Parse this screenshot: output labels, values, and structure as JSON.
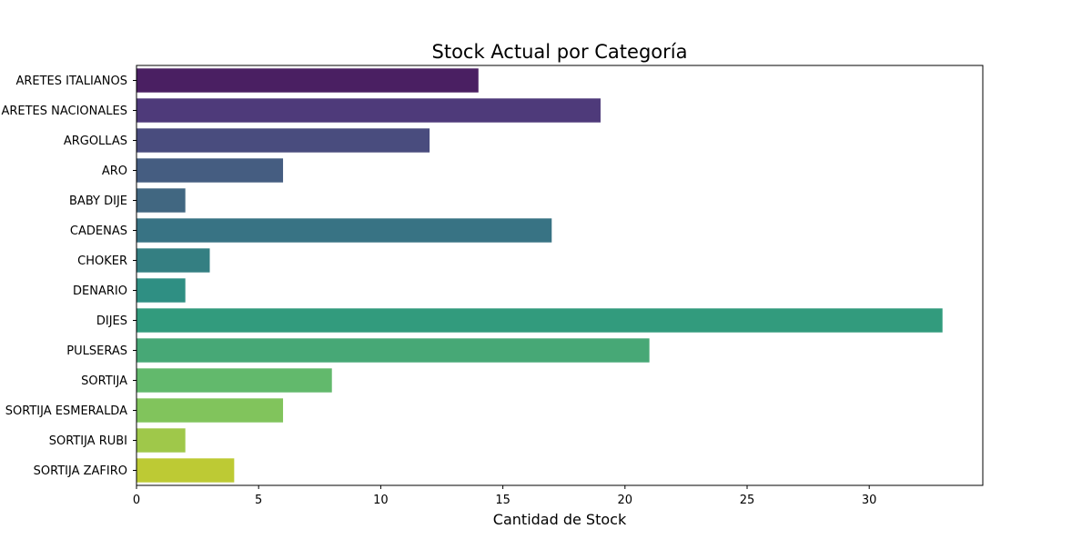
{
  "chart_data": {
    "type": "bar",
    "orientation": "horizontal",
    "title": "Stock Actual por Categoría",
    "xlabel": "Cantidad de Stock",
    "ylabel": "",
    "xlim": [
      0,
      34.65
    ],
    "xticks": [
      0,
      5,
      10,
      15,
      20,
      25,
      30
    ],
    "grid": false,
    "legend": "none",
    "categories": [
      "ARETES ITALIANOS",
      "ARETES NACIONALES",
      "ARGOLLAS",
      "ARO",
      "BABY DIJE",
      "CADENAS",
      "CHOKER",
      "DENARIO",
      "DIJES",
      "PULSERAS",
      "SORTIJA",
      "SORTIJA ESMERALDA",
      "SORTIJA RUBI",
      "SORTIJA ZAFIRO"
    ],
    "values": [
      14,
      19,
      12,
      6,
      2,
      17,
      3,
      2,
      33,
      21,
      8,
      6,
      2,
      4
    ],
    "colors": [
      "#4a1f62",
      "#4e3a7a",
      "#494c7e",
      "#455d81",
      "#416781",
      "#387384",
      "#347f82",
      "#2f8f83",
      "#329b7d",
      "#47a876",
      "#62b96c",
      "#81c45c",
      "#9fc84a",
      "#bdca34"
    ]
  }
}
